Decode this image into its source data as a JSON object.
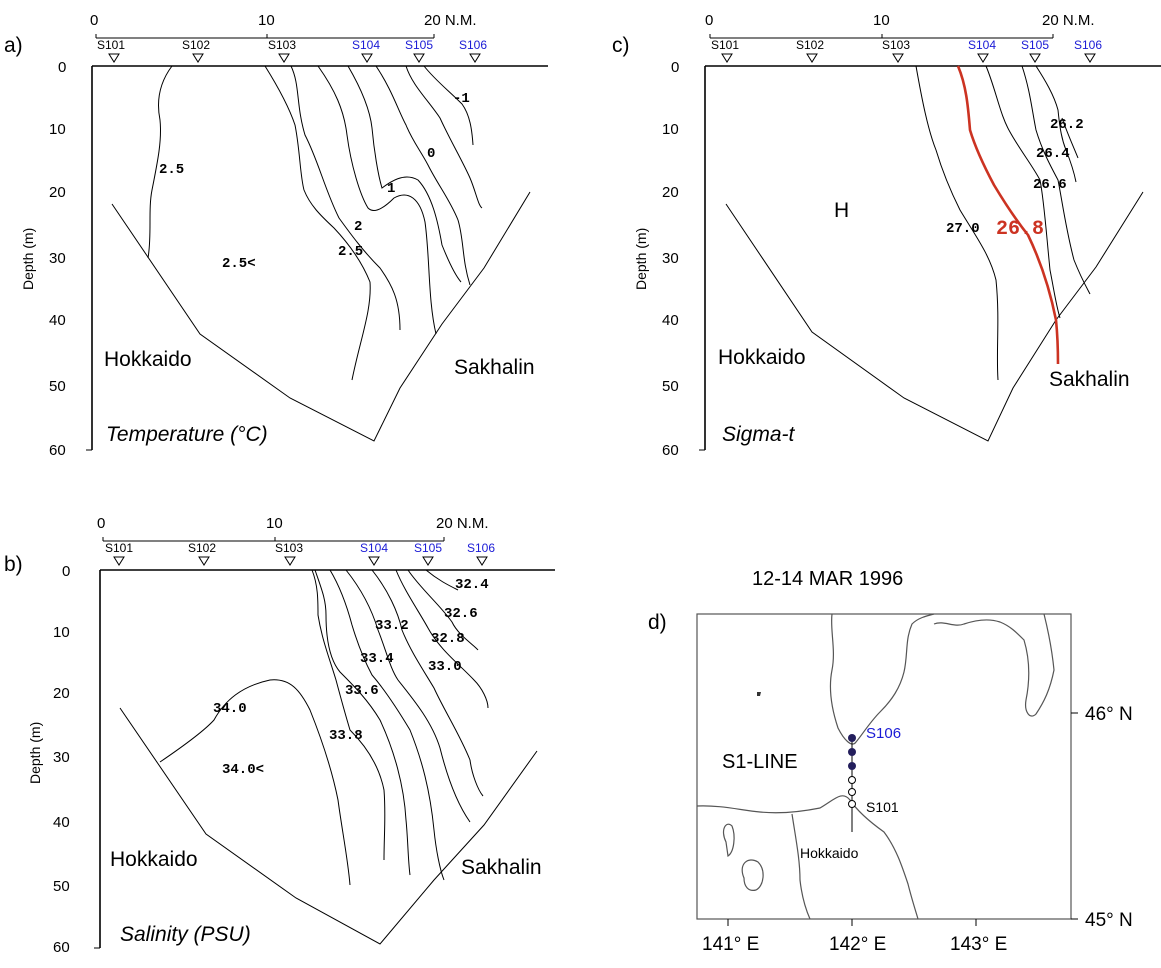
{
  "panels": {
    "a": {
      "letter": "a)",
      "title": "Temperature (°C)",
      "ylabel": "Depth (m)",
      "contour_labels": [
        "2.5",
        "-1",
        "0",
        "1",
        "2",
        "2.5",
        "2.5<"
      ]
    },
    "b": {
      "letter": "b)",
      "title": "Salinity  (PSU)",
      "ylabel": "Depth (m)",
      "contour_labels": [
        "32.4",
        "32.6",
        "32.8",
        "33.0",
        "33.2",
        "33.4",
        "33.6",
        "33.8",
        "34.0",
        "34.0<"
      ]
    },
    "c": {
      "letter": "c)",
      "title": "Sigma-t",
      "ylabel": "Depth (m)",
      "high_label": "H",
      "contour_labels": [
        "26.2",
        "26.4",
        "26.6",
        "27.0",
        "26.8"
      ],
      "highlight_color": "#cc3322"
    },
    "d": {
      "letter": "d)",
      "date": "12-14 MAR 1996",
      "line_label": "S1-LINE",
      "north_station": "S106",
      "south_station": "S101",
      "land_label": "Hokkaido",
      "lon_ticks": [
        "141° E",
        "142° E",
        "143° E"
      ],
      "lat_ticks": [
        "46° N",
        "45° N"
      ]
    }
  },
  "common": {
    "stations": [
      "S101",
      "S102",
      "S103",
      "S104",
      "S105",
      "S106"
    ],
    "blue_stations": [
      "S104",
      "S105",
      "S106"
    ],
    "distance_ticks": [
      "0",
      "10",
      "20 N.M."
    ],
    "depth_ticks": [
      "0",
      "10",
      "20",
      "30",
      "40",
      "50",
      "60"
    ],
    "land_left": "Hokkaido",
    "land_right": "Sakhalin",
    "station_blue": "#1a1ad6"
  }
}
